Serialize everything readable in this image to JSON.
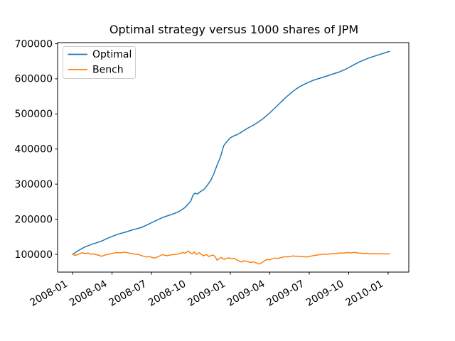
{
  "figure": {
    "background": "#ffffff"
  },
  "chart_data": {
    "type": "line",
    "title": "Optimal strategy versus 1000 shares of JPM",
    "xlabel": "",
    "ylabel": "",
    "x_unit": "months since 2008-01-01",
    "xlim": [
      -1.14,
      25.57
    ],
    "ylim": [
      49400,
      703100
    ],
    "grid": false,
    "legend": {
      "position": "upper-left"
    },
    "x_ticks": [
      {
        "label": "2008-01",
        "m": 0
      },
      {
        "label": "2008-04",
        "m": 3
      },
      {
        "label": "2008-07",
        "m": 6
      },
      {
        "label": "2008-10",
        "m": 9
      },
      {
        "label": "2009-01",
        "m": 12
      },
      {
        "label": "2009-04",
        "m": 15
      },
      {
        "label": "2009-07",
        "m": 18
      },
      {
        "label": "2009-10",
        "m": 21
      },
      {
        "label": "2010-01",
        "m": 24
      }
    ],
    "y_ticks": [
      {
        "label": "100000",
        "value": 100000
      },
      {
        "label": "200000",
        "value": 200000
      },
      {
        "label": "300000",
        "value": 300000
      },
      {
        "label": "400000",
        "value": 400000
      },
      {
        "label": "500000",
        "value": 500000
      },
      {
        "label": "600000",
        "value": 600000
      },
      {
        "label": "700000",
        "value": 700000
      }
    ],
    "series": [
      {
        "name": "Optimal",
        "color": "#1f77b4",
        "points": [
          [
            0,
            100000
          ],
          [
            0.25,
            106000
          ],
          [
            0.5,
            112000
          ],
          [
            0.75,
            117500
          ],
          [
            1,
            122000
          ],
          [
            1.25,
            125500
          ],
          [
            1.5,
            129000
          ],
          [
            1.75,
            132000
          ],
          [
            2,
            135000
          ],
          [
            2.25,
            138500
          ],
          [
            2.5,
            143000
          ],
          [
            2.75,
            147000
          ],
          [
            3,
            151000
          ],
          [
            3.25,
            154500
          ],
          [
            3.5,
            158000
          ],
          [
            3.75,
            160500
          ],
          [
            4,
            163000
          ],
          [
            4.25,
            166000
          ],
          [
            4.5,
            169000
          ],
          [
            4.75,
            171500
          ],
          [
            5,
            174000
          ],
          [
            5.25,
            177000
          ],
          [
            5.5,
            181000
          ],
          [
            5.75,
            185500
          ],
          [
            6,
            190000
          ],
          [
            6.25,
            194500
          ],
          [
            6.5,
            199000
          ],
          [
            6.75,
            203000
          ],
          [
            7,
            207000
          ],
          [
            7.25,
            210000
          ],
          [
            7.5,
            213000
          ],
          [
            7.75,
            216500
          ],
          [
            8,
            220000
          ],
          [
            8.25,
            226000
          ],
          [
            8.5,
            232000
          ],
          [
            8.75,
            241000
          ],
          [
            9,
            252000
          ],
          [
            9.15,
            268000
          ],
          [
            9.3,
            274000
          ],
          [
            9.5,
            272000
          ],
          [
            9.7,
            278000
          ],
          [
            10,
            285000
          ],
          [
            10.25,
            297000
          ],
          [
            10.5,
            310000
          ],
          [
            10.75,
            330000
          ],
          [
            11,
            355000
          ],
          [
            11.25,
            378000
          ],
          [
            11.5,
            410000
          ],
          [
            11.75,
            422000
          ],
          [
            12,
            432000
          ],
          [
            12.25,
            437000
          ],
          [
            12.5,
            441000
          ],
          [
            12.75,
            446000
          ],
          [
            13,
            452000
          ],
          [
            13.25,
            458000
          ],
          [
            13.5,
            463000
          ],
          [
            13.75,
            468000
          ],
          [
            14,
            474000
          ],
          [
            14.25,
            480000
          ],
          [
            14.5,
            487000
          ],
          [
            14.75,
            495000
          ],
          [
            15,
            503000
          ],
          [
            15.25,
            512000
          ],
          [
            15.5,
            521000
          ],
          [
            15.75,
            530000
          ],
          [
            16,
            539000
          ],
          [
            16.25,
            548000
          ],
          [
            16.5,
            556000
          ],
          [
            16.75,
            564000
          ],
          [
            17,
            571000
          ],
          [
            17.25,
            577000
          ],
          [
            17.5,
            582000
          ],
          [
            17.75,
            587000
          ],
          [
            18,
            591000
          ],
          [
            18.25,
            595000
          ],
          [
            18.5,
            598000
          ],
          [
            18.75,
            601000
          ],
          [
            19,
            604000
          ],
          [
            19.25,
            607000
          ],
          [
            19.5,
            610000
          ],
          [
            19.75,
            613000
          ],
          [
            20,
            616000
          ],
          [
            20.25,
            619000
          ],
          [
            20.5,
            623000
          ],
          [
            20.75,
            627000
          ],
          [
            21,
            632000
          ],
          [
            21.25,
            637000
          ],
          [
            21.5,
            642000
          ],
          [
            21.75,
            647000
          ],
          [
            22,
            651000
          ],
          [
            22.25,
            655000
          ],
          [
            22.5,
            659000
          ],
          [
            22.75,
            662000
          ],
          [
            23,
            665000
          ],
          [
            23.25,
            668000
          ],
          [
            23.5,
            671000
          ],
          [
            23.75,
            674000
          ],
          [
            24,
            677000
          ],
          [
            24.1,
            678000
          ]
        ]
      },
      {
        "name": "Bench",
        "color": "#ff7f0e",
        "points": [
          [
            0,
            100000
          ],
          [
            0.1,
            98500
          ],
          [
            0.2,
            97000
          ],
          [
            0.3,
            98000
          ],
          [
            0.4,
            99500
          ],
          [
            0.5,
            101000
          ],
          [
            0.6,
            103000
          ],
          [
            0.7,
            104000
          ],
          [
            0.8,
            104000
          ],
          [
            0.9,
            103000
          ],
          [
            1,
            102000
          ],
          [
            1.1,
            103500
          ],
          [
            1.2,
            103500
          ],
          [
            1.3,
            102000
          ],
          [
            1.4,
            100500
          ],
          [
            1.5,
            101000
          ],
          [
            1.6,
            101500
          ],
          [
            1.7,
            100000
          ],
          [
            1.8,
            99000
          ],
          [
            1.9,
            98000
          ],
          [
            2,
            97500
          ],
          [
            2.1,
            95500
          ],
          [
            2.2,
            94500
          ],
          [
            2.3,
            95500
          ],
          [
            2.4,
            97000
          ],
          [
            2.5,
            98000
          ],
          [
            2.6,
            99500
          ],
          [
            2.7,
            100000
          ],
          [
            2.8,
            101000
          ],
          [
            2.9,
            101500
          ],
          [
            3,
            102500
          ],
          [
            3.2,
            104000
          ],
          [
            3.4,
            105000
          ],
          [
            3.6,
            104000
          ],
          [
            3.8,
            105500
          ],
          [
            4,
            106000
          ],
          [
            4.2,
            104500
          ],
          [
            4.4,
            103000
          ],
          [
            4.6,
            101500
          ],
          [
            4.8,
            100500
          ],
          [
            5,
            99500
          ],
          [
            5.2,
            97000
          ],
          [
            5.4,
            94500
          ],
          [
            5.6,
            92500
          ],
          [
            5.8,
            93500
          ],
          [
            6,
            92000
          ],
          [
            6.2,
            89000
          ],
          [
            6.4,
            91500
          ],
          [
            6.6,
            95000
          ],
          [
            6.8,
            99000
          ],
          [
            7,
            97500
          ],
          [
            7.2,
            96000
          ],
          [
            7.4,
            98000
          ],
          [
            7.6,
            99000
          ],
          [
            7.8,
            100000
          ],
          [
            8,
            100500
          ],
          [
            8.2,
            103000
          ],
          [
            8.4,
            105000
          ],
          [
            8.55,
            103000
          ],
          [
            8.7,
            107000
          ],
          [
            8.8,
            109500
          ],
          [
            8.9,
            106000
          ],
          [
            9,
            103000
          ],
          [
            9.1,
            101000
          ],
          [
            9.25,
            107000
          ],
          [
            9.4,
            99500
          ],
          [
            9.55,
            103000
          ],
          [
            9.65,
            104500
          ],
          [
            9.8,
            100000
          ],
          [
            9.95,
            96000
          ],
          [
            10.1,
            98000
          ],
          [
            10.2,
            99500
          ],
          [
            10.35,
            94000
          ],
          [
            10.5,
            96000
          ],
          [
            10.7,
            98000
          ],
          [
            10.85,
            92500
          ],
          [
            11,
            83000
          ],
          [
            11.15,
            88000
          ],
          [
            11.3,
            91000
          ],
          [
            11.45,
            87000
          ],
          [
            11.6,
            86000
          ],
          [
            11.75,
            89000
          ],
          [
            11.9,
            90000
          ],
          [
            12,
            87500
          ],
          [
            12.15,
            88500
          ],
          [
            12.3,
            88500
          ],
          [
            12.45,
            85000
          ],
          [
            12.6,
            82500
          ],
          [
            12.75,
            79000
          ],
          [
            12.9,
            78000
          ],
          [
            13,
            81500
          ],
          [
            13.15,
            81000
          ],
          [
            13.3,
            79500
          ],
          [
            13.45,
            78000
          ],
          [
            13.6,
            76500
          ],
          [
            13.75,
            78500
          ],
          [
            13.9,
            76000
          ],
          [
            14,
            75500
          ],
          [
            14.15,
            72500
          ],
          [
            14.3,
            74000
          ],
          [
            14.45,
            78000
          ],
          [
            14.6,
            81500
          ],
          [
            14.8,
            85500
          ],
          [
            15,
            84500
          ],
          [
            15.2,
            87500
          ],
          [
            15.4,
            89500
          ],
          [
            15.6,
            88000
          ],
          [
            15.8,
            90500
          ],
          [
            16,
            92000
          ],
          [
            16.2,
            93500
          ],
          [
            16.4,
            92500
          ],
          [
            16.6,
            94500
          ],
          [
            16.8,
            95500
          ],
          [
            17,
            94000
          ],
          [
            17.2,
            95000
          ],
          [
            17.4,
            93000
          ],
          [
            17.6,
            93500
          ],
          [
            17.8,
            92500
          ],
          [
            18,
            93500
          ],
          [
            18.2,
            95500
          ],
          [
            18.4,
            97000
          ],
          [
            18.6,
            98000
          ],
          [
            18.8,
            99000
          ],
          [
            19,
            100000
          ],
          [
            19.2,
            101000
          ],
          [
            19.4,
            100000
          ],
          [
            19.6,
            101500
          ],
          [
            19.8,
            102000
          ],
          [
            20,
            102500
          ],
          [
            20.2,
            103000
          ],
          [
            20.4,
            104000
          ],
          [
            20.6,
            103500
          ],
          [
            20.8,
            104500
          ],
          [
            21,
            105000
          ],
          [
            21.2,
            104000
          ],
          [
            21.4,
            105500
          ],
          [
            21.6,
            104500
          ],
          [
            21.8,
            103500
          ],
          [
            22,
            103000
          ],
          [
            22.2,
            102000
          ],
          [
            22.4,
            103000
          ],
          [
            22.6,
            102000
          ],
          [
            22.8,
            101500
          ],
          [
            23,
            102000
          ],
          [
            23.2,
            101000
          ],
          [
            23.4,
            102000
          ],
          [
            23.6,
            101500
          ],
          [
            23.8,
            101000
          ],
          [
            24,
            101500
          ],
          [
            24.1,
            101000
          ]
        ]
      }
    ]
  }
}
